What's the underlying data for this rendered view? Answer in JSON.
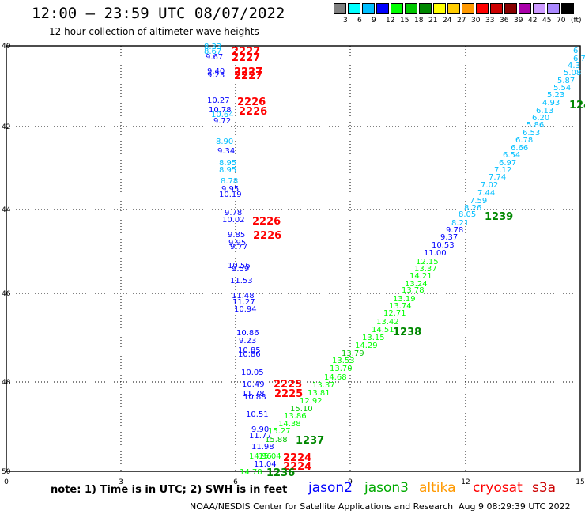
{
  "header": {
    "title": "12:00 — 23:59 UTC 08/07/2022",
    "subtitle": "12 hour collection of altimeter wave heights",
    "legend_colors": [
      "#808080",
      "#00ffff",
      "#00bfff",
      "#0000ff",
      "#00ff00",
      "#00c800",
      "#008800",
      "#ffff00",
      "#ffcc00",
      "#ff9900",
      "#ff0000",
      "#cc0000",
      "#880000",
      "#aa00aa",
      "#cc99ff",
      "#aa88ff",
      "#000000"
    ],
    "legend_labels": [
      "3",
      "6",
      "9",
      "12",
      "15",
      "18",
      "21",
      "24",
      "27",
      "30",
      "33",
      "36",
      "39",
      "42",
      "45",
      "70",
      "(ft)"
    ]
  },
  "map": {
    "x_ticks": [
      "0",
      "3",
      "6",
      "9",
      "12",
      "15"
    ],
    "y_ticks": [
      "40",
      "42",
      "44",
      "46",
      "48",
      "50"
    ],
    "swh_values": [
      {
        "t": "8.33",
        "c": "#00bfff"
      },
      {
        "t": "8.67",
        "c": "#00bfff"
      },
      {
        "t": "9.67",
        "c": "#0000ff"
      },
      {
        "t": "9.40",
        "c": "#0000ff"
      },
      {
        "t": "9.23",
        "c": "#0000ff"
      },
      {
        "t": "10.27",
        "c": "#0000ff"
      },
      {
        "t": "10.78",
        "c": "#0000ff"
      },
      {
        "t": "10.64",
        "c": "#00bfff"
      },
      {
        "t": "9.72",
        "c": "#0000ff"
      },
      {
        "t": "8.90",
        "c": "#00bfff"
      },
      {
        "t": "9.34",
        "c": "#0000ff"
      },
      {
        "t": "8.95",
        "c": "#00bfff"
      },
      {
        "t": "8.95",
        "c": "#00bfff"
      },
      {
        "t": "8.78",
        "c": "#00bfff"
      },
      {
        "t": "9.95",
        "c": "#0000ff"
      },
      {
        "t": "10.19",
        "c": "#0000ff"
      },
      {
        "t": "9.78",
        "c": "#0000ff"
      },
      {
        "t": "10.02",
        "c": "#0000ff"
      },
      {
        "t": "9.85",
        "c": "#0000ff"
      },
      {
        "t": "9.95",
        "c": "#0000ff"
      },
      {
        "t": "9.77",
        "c": "#0000ff"
      },
      {
        "t": "10.56",
        "c": "#0000ff"
      },
      {
        "t": "9.59",
        "c": "#0000ff"
      },
      {
        "t": "11.53",
        "c": "#0000ff"
      },
      {
        "t": "11.48",
        "c": "#0000ff"
      },
      {
        "t": "11.27",
        "c": "#0000ff"
      },
      {
        "t": "10.94",
        "c": "#0000ff"
      },
      {
        "t": "10.86",
        "c": "#0000ff"
      },
      {
        "t": "9.23",
        "c": "#0000ff"
      },
      {
        "t": "10.85",
        "c": "#0000ff"
      },
      {
        "t": "10.86",
        "c": "#0000ff"
      },
      {
        "t": "10.05",
        "c": "#0000ff"
      },
      {
        "t": "10.49",
        "c": "#0000ff"
      },
      {
        "t": "11.78",
        "c": "#0000ff"
      },
      {
        "t": "10.88",
        "c": "#0000ff"
      },
      {
        "t": "10.51",
        "c": "#0000ff"
      },
      {
        "t": "9.90",
        "c": "#0000ff"
      },
      {
        "t": "11.77",
        "c": "#0000ff"
      },
      {
        "t": "11.98",
        "c": "#0000ff"
      },
      {
        "t": "14.96",
        "c": "#00ff00"
      },
      {
        "t": "15.04",
        "c": "#00ff00"
      },
      {
        "t": "14.78",
        "c": "#00ff00"
      },
      {
        "t": "11.04",
        "c": "#0000ff"
      },
      {
        "t": "15.27",
        "c": "#00ff00"
      },
      {
        "t": "15.88",
        "c": "#00c800"
      },
      {
        "t": "15.10",
        "c": "#00c800"
      },
      {
        "t": "13.86",
        "c": "#00ff00"
      },
      {
        "t": "14.38",
        "c": "#00ff00"
      },
      {
        "t": "12.92",
        "c": "#00ff00"
      },
      {
        "t": "13.81",
        "c": "#00ff00"
      },
      {
        "t": "13.37",
        "c": "#00ff00"
      },
      {
        "t": "14.68",
        "c": "#00ff00"
      },
      {
        "t": "13.70",
        "c": "#00ff00"
      },
      {
        "t": "13.53",
        "c": "#00ff00"
      },
      {
        "t": "13.79",
        "c": "#00c800"
      },
      {
        "t": "14.29",
        "c": "#00ff00"
      },
      {
        "t": "13.15",
        "c": "#00ff00"
      },
      {
        "t": "14.51",
        "c": "#00ff00"
      },
      {
        "t": "13.42",
        "c": "#00ff00"
      },
      {
        "t": "12.71",
        "c": "#00ff00"
      },
      {
        "t": "13.74",
        "c": "#00ff00"
      },
      {
        "t": "13.19",
        "c": "#00ff00"
      },
      {
        "t": "13.78",
        "c": "#00ff00"
      },
      {
        "t": "13.24",
        "c": "#00ff00"
      },
      {
        "t": "14.21",
        "c": "#00ff00"
      },
      {
        "t": "13.37",
        "c": "#00ff00"
      },
      {
        "t": "12.15",
        "c": "#00ff00"
      },
      {
        "t": "11.00",
        "c": "#0000ff"
      },
      {
        "t": "10.53",
        "c": "#0000ff"
      },
      {
        "t": "9.37",
        "c": "#0000ff"
      },
      {
        "t": "9.78",
        "c": "#0000ff"
      },
      {
        "t": "8.21",
        "c": "#00bfff"
      },
      {
        "t": "8.05",
        "c": "#00bfff"
      },
      {
        "t": "8.26",
        "c": "#00bfff"
      },
      {
        "t": "7.59",
        "c": "#00bfff"
      },
      {
        "t": "7.44",
        "c": "#00bfff"
      },
      {
        "t": "7.02",
        "c": "#00bfff"
      },
      {
        "t": "7.74",
        "c": "#00bfff"
      },
      {
        "t": "7.12",
        "c": "#00bfff"
      },
      {
        "t": "6.97",
        "c": "#00bfff"
      },
      {
        "t": "6.54",
        "c": "#00bfff"
      },
      {
        "t": "6.66",
        "c": "#00bfff"
      },
      {
        "t": "6.78",
        "c": "#00bfff"
      },
      {
        "t": "6.53",
        "c": "#00bfff"
      },
      {
        "t": "5.86",
        "c": "#00bfff"
      },
      {
        "t": "6.20",
        "c": "#00bfff"
      },
      {
        "t": "6.13",
        "c": "#00bfff"
      },
      {
        "t": "4.93",
        "c": "#00bfff"
      },
      {
        "t": "5.23",
        "c": "#00bfff"
      },
      {
        "t": "5.54",
        "c": "#00bfff"
      },
      {
        "t": "5.87",
        "c": "#00bfff"
      },
      {
        "t": "5.08",
        "c": "#00bfff"
      },
      {
        "t": "4.3",
        "c": "#00bfff"
      },
      {
        "t": "6.7",
        "c": "#00bfff"
      },
      {
        "t": "6",
        "c": "#00bfff"
      }
    ],
    "pass_labels": [
      {
        "t": "2227",
        "c": "#ff0000"
      },
      {
        "t": "2227",
        "c": "#ff0000"
      },
      {
        "t": "2227",
        "c": "#ff0000"
      },
      {
        "t": "2227",
        "c": "#ff0000"
      },
      {
        "t": "2226",
        "c": "#ff0000"
      },
      {
        "t": "2226",
        "c": "#ff0000"
      },
      {
        "t": "2226",
        "c": "#ff0000"
      },
      {
        "t": "2226",
        "c": "#ff0000"
      },
      {
        "t": "2225",
        "c": "#ff0000"
      },
      {
        "t": "2225",
        "c": "#ff0000"
      },
      {
        "t": "2224",
        "c": "#ff0000"
      },
      {
        "t": "2224",
        "c": "#ff0000"
      },
      {
        "t": "1236",
        "c": "#008800"
      },
      {
        "t": "1237",
        "c": "#008800"
      },
      {
        "t": "1238",
        "c": "#008800"
      },
      {
        "t": "1239",
        "c": "#008800"
      },
      {
        "t": "124",
        "c": "#008800"
      }
    ]
  },
  "footer": {
    "note": "note:  1) Time is in UTC; 2) SWH is in feet",
    "satellites": [
      {
        "name": "jason2",
        "color": "#0000ff"
      },
      {
        "name": "jason3",
        "color": "#00aa00"
      },
      {
        "name": "altika",
        "color": "#ff9900"
      },
      {
        "name": "cryosat",
        "color": "#ff0000"
      },
      {
        "name": "s3a",
        "color": "#cc0000"
      }
    ],
    "credit": "NOAA/NESDIS Center for Satellite Applications and Research",
    "timestamp": "Aug  9 08:29:39 UTC 2022"
  }
}
